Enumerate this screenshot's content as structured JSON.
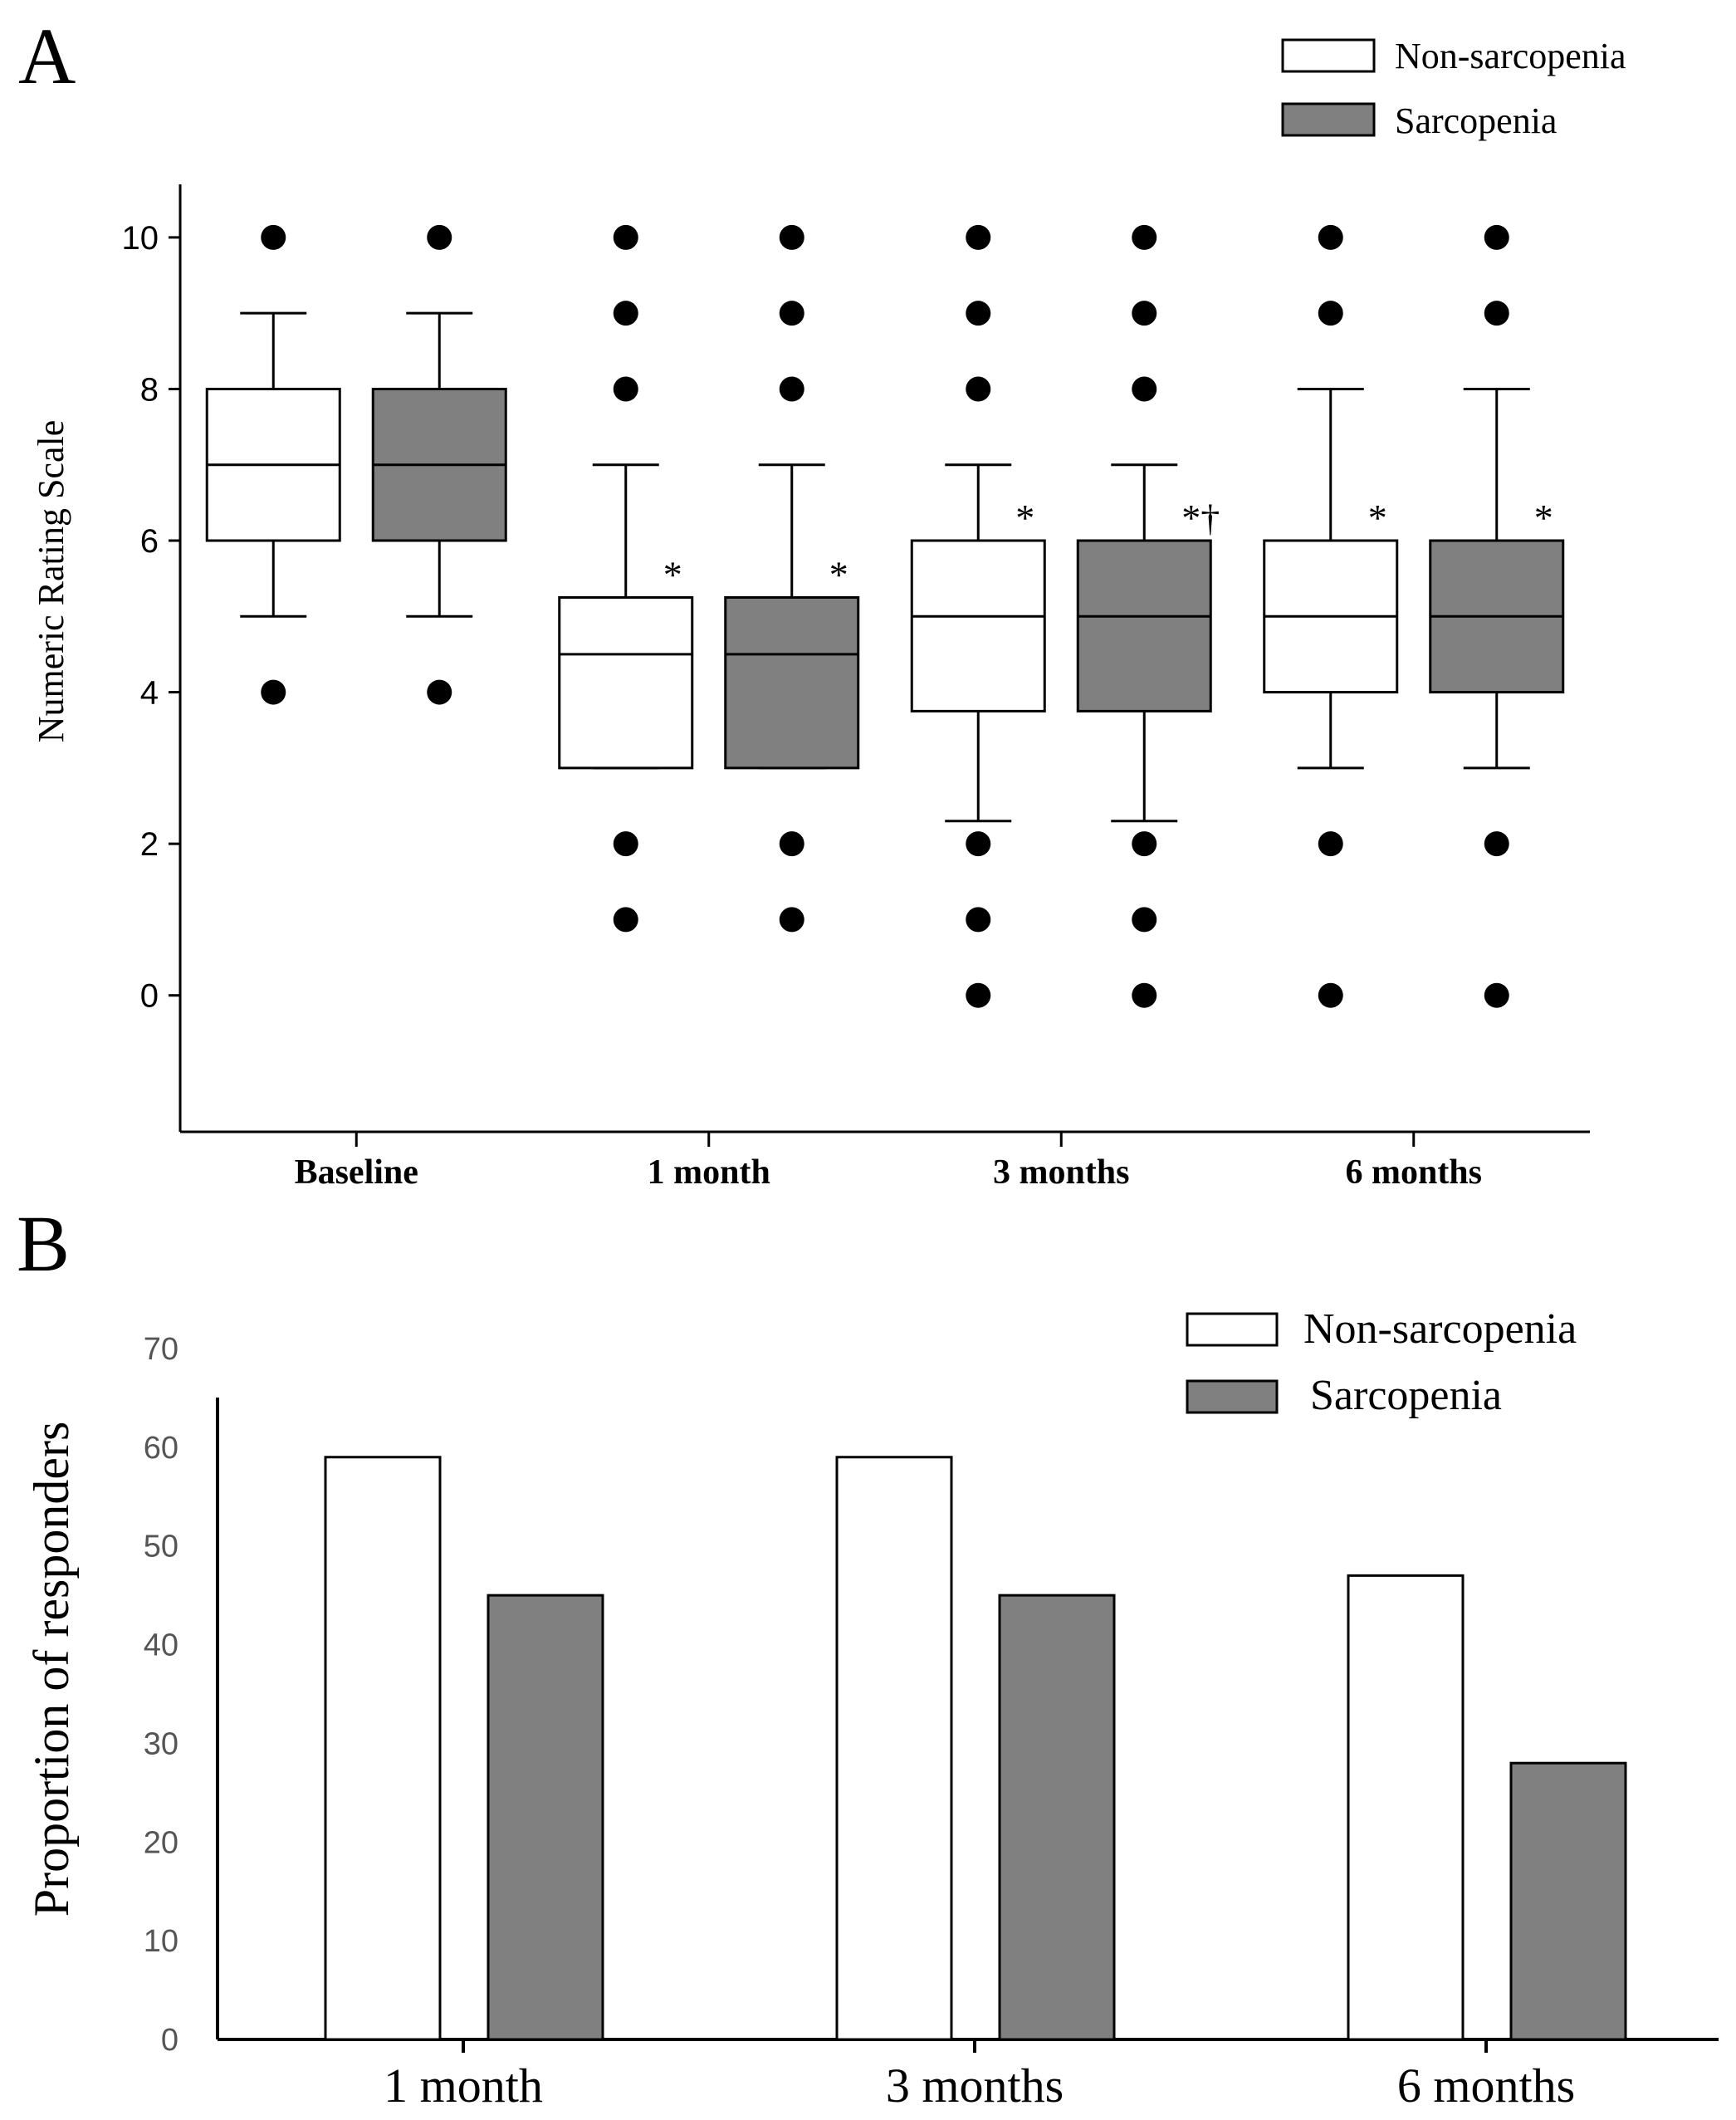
{
  "panels": {
    "a_label": "A",
    "b_label": "B"
  },
  "colors": {
    "non_sarcopenia": "#ffffff",
    "sarcopenia": "#808080",
    "outline": "#000000"
  },
  "chart_data": [
    {
      "type": "box",
      "panel": "A",
      "title": "",
      "xlabel": "",
      "ylabel": "Numeric Rating Scale",
      "ylim": [
        -1.8,
        10.7
      ],
      "yticks": [
        0,
        2,
        4,
        6,
        8,
        10
      ],
      "categories": [
        "Baseline",
        "1 month",
        "3 months",
        "6 months"
      ],
      "legend": {
        "position": "top-right",
        "entries": [
          "Non-sarcopenia",
          "Sarcopenia"
        ]
      },
      "series": [
        {
          "name": "Non-sarcopenia",
          "boxes": [
            {
              "category": "Baseline",
              "whisker_low": 5,
              "q1": 6,
              "median": 7,
              "q3": 8,
              "whisker_high": 9,
              "outliers": [
                10,
                4
              ],
              "annotation": ""
            },
            {
              "category": "1 month",
              "whisker_low": 3,
              "q1": 3,
              "median": 4.5,
              "q3": 5.25,
              "whisker_high": 7,
              "outliers": [
                10,
                9,
                8,
                2,
                1
              ],
              "annotation": "*"
            },
            {
              "category": "3 months",
              "whisker_low": 2.3,
              "q1": 3.75,
              "median": 5,
              "q3": 6,
              "whisker_high": 7,
              "outliers": [
                10,
                9,
                8,
                2,
                1,
                0
              ],
              "annotation": "*"
            },
            {
              "category": "6 months",
              "whisker_low": 3,
              "q1": 4,
              "median": 5,
              "q3": 6,
              "whisker_high": 8,
              "outliers": [
                10,
                9,
                2,
                0
              ],
              "annotation": "*"
            }
          ]
        },
        {
          "name": "Sarcopenia",
          "boxes": [
            {
              "category": "Baseline",
              "whisker_low": 5,
              "q1": 6,
              "median": 7,
              "q3": 8,
              "whisker_high": 9,
              "outliers": [
                10,
                4
              ],
              "annotation": ""
            },
            {
              "category": "1 month",
              "whisker_low": 3,
              "q1": 3,
              "median": 4.5,
              "q3": 5.25,
              "whisker_high": 7,
              "outliers": [
                10,
                9,
                8,
                2,
                1
              ],
              "annotation": "*"
            },
            {
              "category": "3 months",
              "whisker_low": 2.3,
              "q1": 3.75,
              "median": 5,
              "q3": 6,
              "whisker_high": 7,
              "outliers": [
                10,
                9,
                8,
                2,
                1,
                0
              ],
              "annotation": "*†"
            },
            {
              "category": "6 months",
              "whisker_low": 3,
              "q1": 4,
              "median": 5,
              "q3": 6,
              "whisker_high": 8,
              "outliers": [
                10,
                9,
                2,
                0
              ],
              "annotation": "*"
            }
          ]
        }
      ],
      "grid": false
    },
    {
      "type": "bar",
      "panel": "B",
      "title": "",
      "xlabel": "",
      "ylabel": "Proportion of responders",
      "ylim": [
        0,
        70
      ],
      "yticks": [
        0,
        10,
        20,
        30,
        40,
        50,
        60,
        70
      ],
      "categories": [
        "1 month",
        "3 months",
        "6 months"
      ],
      "legend": {
        "position": "top-right",
        "entries": [
          "Non-sarcopenia",
          "Sarcopenia"
        ]
      },
      "series": [
        {
          "name": "Non-sarcopenia",
          "values": [
            59,
            59,
            47
          ]
        },
        {
          "name": "Sarcopenia",
          "values": [
            45,
            45,
            28
          ]
        }
      ],
      "grid": false
    }
  ]
}
